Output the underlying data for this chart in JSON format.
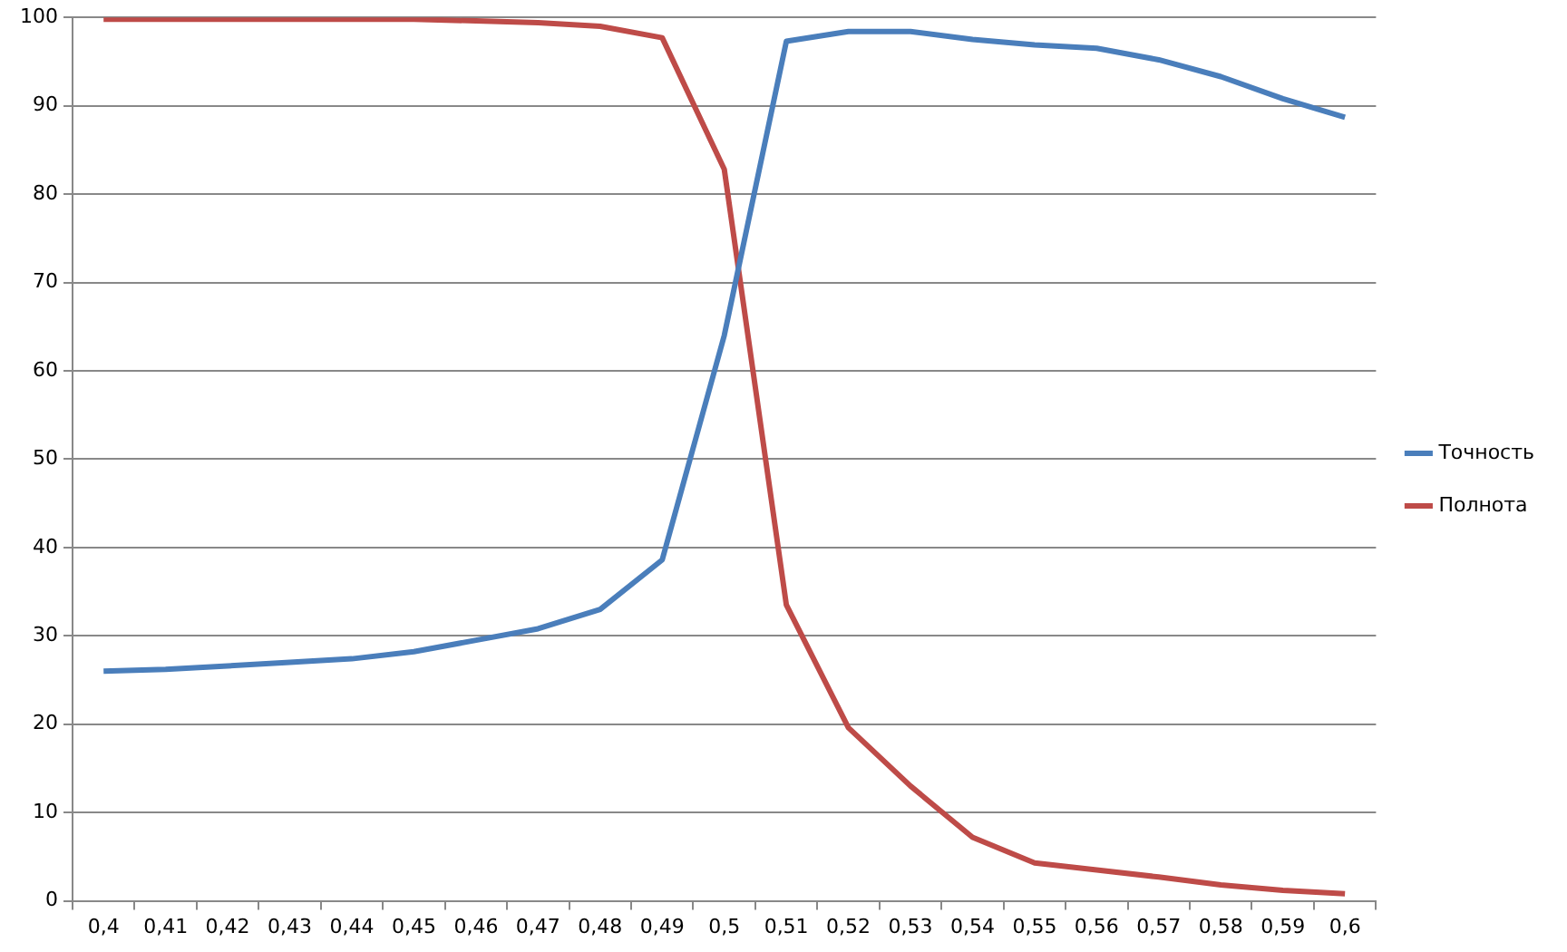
{
  "chart_data": {
    "type": "line",
    "categories": [
      "0,4",
      "0,41",
      "0,42",
      "0,43",
      "0,44",
      "0,45",
      "0,46",
      "0,47",
      "0,48",
      "0,49",
      "0,5",
      "0,51",
      "0,52",
      "0,53",
      "0,54",
      "0,55",
      "0,56",
      "0,57",
      "0,58",
      "0,59",
      "0,6"
    ],
    "series": [
      {
        "name": "Точность",
        "color": "#4a7ebb",
        "values": [
          26,
          26.2,
          26.6,
          27,
          27.4,
          28.2,
          29.5,
          30.8,
          33,
          38.6,
          64,
          97.3,
          98.4,
          98.4,
          97.5,
          96.9,
          96.5,
          95.2,
          93.3,
          90.8,
          88.7
        ]
      },
      {
        "name": "Полнота",
        "color": "#be4b48",
        "values": [
          99.8,
          99.8,
          99.8,
          99.8,
          99.8,
          99.8,
          99.6,
          99.4,
          99,
          97.7,
          82.8,
          33.5,
          19.6,
          13,
          7.2,
          4.3,
          3.5,
          2.7,
          1.8,
          1.2,
          0.8
        ]
      }
    ],
    "ylim": [
      0,
      100
    ],
    "yticks": [
      0,
      10,
      20,
      30,
      40,
      50,
      60,
      70,
      80,
      90,
      100
    ],
    "grid": "y",
    "legend": "right",
    "marker": "none",
    "line_style": "solid"
  }
}
